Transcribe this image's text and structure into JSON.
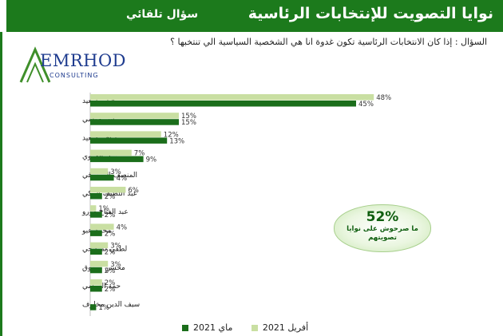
{
  "header": {
    "title": "نوايا التصويت للإنتخابات الرئاسية",
    "subtitle": "سؤال تلقائي"
  },
  "question": "السؤال : إذا كان الانتخابات الرئاسية تكون غدوة انا هي الشخصية السياسية الي تنتخبها ؟",
  "logo": {
    "main": "EMRHOD",
    "sub": "CONSULTING"
  },
  "callout": {
    "value": "52%",
    "line1": "ما صرحوش على نوايا",
    "line2": "تصويتهم"
  },
  "colors": {
    "banner": "#1c7a1c",
    "april": "#c9dfa2",
    "may": "#1b6e1b"
  },
  "chart_data": {
    "type": "bar",
    "orientation": "horizontal",
    "categories": [
      "قيس سعيد",
      "عبير موسي",
      "صافي سعيد",
      "نبيل القروي",
      "المنصف المرزوقي",
      "عبد اللطيف المكي",
      "عبد الفتاح مورو",
      "محمد عبو",
      "لطفي لمرابحي",
      "محسن مرزوق",
      "حمة الهمامي",
      "سيف الدين مخلوف"
    ],
    "series": [
      {
        "name": "أفريل 2021",
        "values": [
          48,
          15,
          12,
          7,
          3,
          6,
          1,
          4,
          3,
          3,
          2,
          null
        ],
        "labels": [
          "48%",
          "15%",
          "12%",
          "7%",
          "3%",
          "6%",
          "1%",
          "4%",
          "3%",
          "3%",
          "2%",
          ""
        ]
      },
      {
        "name": "ماي 2021",
        "values": [
          45,
          15,
          13,
          9,
          4,
          2,
          2,
          2,
          2,
          2,
          2,
          1
        ],
        "labels": [
          "45%",
          "15%",
          "13%",
          "9%",
          "4%",
          "2%",
          "2%",
          "2%",
          "2%",
          "2%",
          "2%",
          "1%"
        ]
      }
    ],
    "xlim": [
      0,
      50
    ],
    "legend_position": "bottom"
  }
}
